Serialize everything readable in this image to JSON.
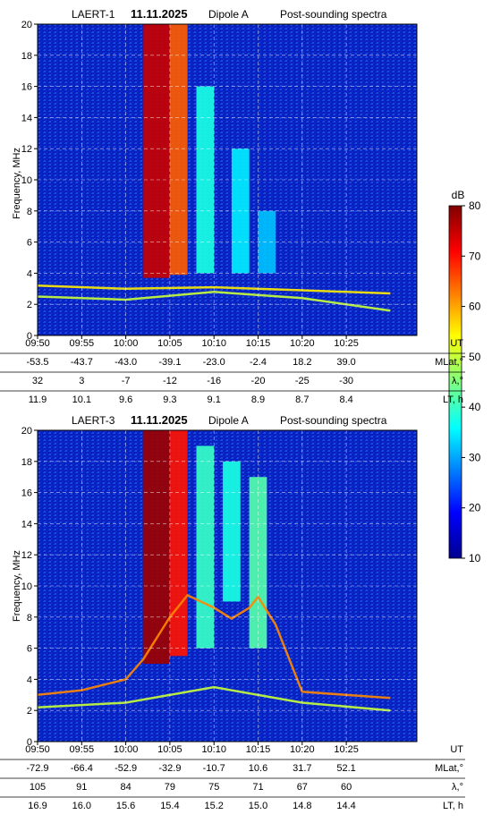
{
  "panels": [
    {
      "title_parts": [
        "LAERT-1",
        "11.11.2025",
        "Dipole A",
        "Post-sounding spectra"
      ],
      "rows": [
        {
          "label": "UT",
          "values": [
            "09:50",
            "09:55",
            "10:00",
            "10:05",
            "10:10",
            "10:15",
            "10:20",
            "10:25"
          ]
        },
        {
          "label": "MLat,°",
          "values": [
            "-53.5",
            "-43.7",
            "-43.0",
            "-39.1",
            "-23.0",
            "-2.4",
            "18.2",
            "39.0"
          ]
        },
        {
          "label": "λ,°",
          "values": [
            "32",
            "3",
            "-7",
            "-12",
            "-16",
            "-20",
            "-25",
            "-30"
          ]
        },
        {
          "label": "LT, h",
          "values": [
            "11.9",
            "10.1",
            "9.6",
            "9.3",
            "9.1",
            "8.9",
            "8.7",
            "8.4"
          ]
        }
      ]
    },
    {
      "title_parts": [
        "LAERT-3",
        "11.11.2025",
        "Dipole A",
        "Post-sounding spectra"
      ],
      "rows": [
        {
          "label": "UT",
          "values": [
            "09:50",
            "09:55",
            "10:00",
            "10:05",
            "10:10",
            "10:15",
            "10:20",
            "10:25"
          ]
        },
        {
          "label": "MLat,°",
          "values": [
            "-72.9",
            "-66.4",
            "-52.9",
            "-32.9",
            "-10.7",
            "10.6",
            "31.7",
            "52.1"
          ]
        },
        {
          "label": "λ,°",
          "values": [
            "105",
            "91",
            "84",
            "79",
            "75",
            "71",
            "67",
            "60"
          ]
        },
        {
          "label": "LT, h",
          "values": [
            "16.9",
            "16.0",
            "15.6",
            "15.4",
            "15.2",
            "15.0",
            "14.8",
            "14.4"
          ]
        }
      ]
    }
  ],
  "colorbar": {
    "label": "dB",
    "ticks": [
      "10",
      "20",
      "30",
      "40",
      "50",
      "60",
      "70",
      "80"
    ],
    "colormap": "jet"
  },
  "chart_data": [
    {
      "type": "heatmap",
      "title": "LAERT-1 11.11.2025 Dipole A Post-sounding spectra",
      "xlabel": "UT",
      "ylabel": "Frequency, MHz",
      "x_ticks": [
        "09:50",
        "09:55",
        "10:00",
        "10:05",
        "10:10",
        "10:15",
        "10:20",
        "10:25"
      ],
      "y_ticks": [
        0,
        2,
        4,
        6,
        8,
        10,
        12,
        14,
        16,
        18,
        20
      ],
      "ylim": [
        0,
        20
      ],
      "zlim": [
        10,
        80
      ],
      "grid": true,
      "background_level_db": 18,
      "bands": [
        {
          "ut_start": "10:02",
          "ut_end": "10:04",
          "f_min": 3.7,
          "f_max": 20,
          "level_db": 75
        },
        {
          "ut_start": "10:05",
          "ut_end": "10:06",
          "f_min": 3.9,
          "f_max": 20,
          "level_db": 65
        },
        {
          "ut_start": "10:08",
          "ut_end": "10:09",
          "f_min": 4.0,
          "f_max": 16,
          "level_db": 38
        },
        {
          "ut_start": "10:12",
          "ut_end": "10:13",
          "f_min": 4.0,
          "f_max": 12,
          "level_db": 35
        },
        {
          "ut_start": "10:15",
          "ut_end": "10:16",
          "f_min": 4.0,
          "f_max": 8,
          "level_db": 32
        }
      ],
      "traces": [
        {
          "name": "",
          "x_min": [
            0,
            10,
            20,
            30,
            40
          ],
          "f": [
            3.2,
            3.0,
            3.1,
            2.9,
            2.7
          ],
          "level_db": 55
        },
        {
          "name": "",
          "x_min": [
            0,
            10,
            20,
            30,
            40
          ],
          "f": [
            2.5,
            2.3,
            2.8,
            2.4,
            1.6
          ],
          "level_db": 50
        }
      ]
    },
    {
      "type": "heatmap",
      "title": "LAERT-3 11.11.2025 Dipole A Post-sounding spectra",
      "xlabel": "UT",
      "ylabel": "Frequency, MHz",
      "x_ticks": [
        "09:50",
        "09:55",
        "10:00",
        "10:05",
        "10:10",
        "10:15",
        "10:20",
        "10:25"
      ],
      "y_ticks": [
        0,
        2,
        4,
        6,
        8,
        10,
        12,
        14,
        16,
        18,
        20
      ],
      "ylim": [
        0,
        20
      ],
      "zlim": [
        10,
        80
      ],
      "grid": true,
      "background_level_db": 18,
      "bands": [
        {
          "ut_start": "10:02",
          "ut_end": "10:04",
          "f_min": 5.0,
          "f_max": 20,
          "level_db": 78
        },
        {
          "ut_start": "10:05",
          "ut_end": "10:06",
          "f_min": 5.5,
          "f_max": 20,
          "level_db": 70
        },
        {
          "ut_start": "10:08",
          "ut_end": "10:09",
          "f_min": 6.0,
          "f_max": 19,
          "level_db": 40
        },
        {
          "ut_start": "10:11",
          "ut_end": "10:12",
          "f_min": 9.0,
          "f_max": 18,
          "level_db": 38
        },
        {
          "ut_start": "10:14",
          "ut_end": "10:15",
          "f_min": 6.0,
          "f_max": 17,
          "level_db": 42
        }
      ],
      "traces": [
        {
          "name": "",
          "x_min": [
            0,
            5,
            10,
            12,
            15,
            17,
            20,
            22,
            24,
            25,
            27,
            30,
            40
          ],
          "f": [
            3.0,
            3.3,
            4.0,
            5.3,
            8.0,
            9.4,
            8.6,
            7.9,
            8.6,
            9.3,
            7.5,
            3.2,
            2.8
          ],
          "level_db": 62
        },
        {
          "name": "",
          "x_min": [
            0,
            10,
            20,
            30,
            40
          ],
          "f": [
            2.2,
            2.5,
            3.5,
            2.5,
            2.0
          ],
          "level_db": 50
        }
      ]
    }
  ]
}
